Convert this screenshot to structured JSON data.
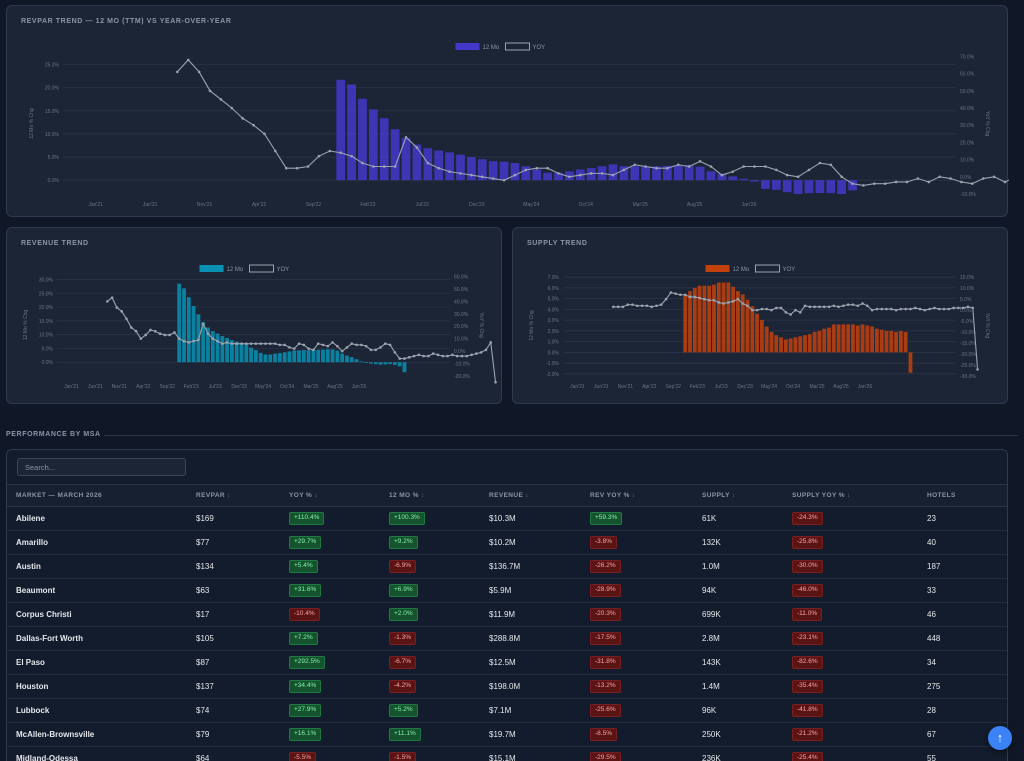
{
  "colors": {
    "blue": "#4338ca",
    "teal": "#0891b2",
    "orange": "#c2410c",
    "yoy": "#9ca3af"
  },
  "revpar": {
    "title": "REVPAR TREND — 12 MO (TTM) VS YEAR-OVER-YEAR",
    "left_axis_label": "12 Mo % Chg",
    "right_axis_label": "YoY % Chg",
    "legend_bar": "12 Mo",
    "legend_line": "YOY"
  },
  "revenue": {
    "title": "REVENUE TREND",
    "left_axis_label": "12 Mo % Chg",
    "right_axis_label": "YoY % Chg",
    "legend_bar": "12 Mo",
    "legend_line": "YOY"
  },
  "supply": {
    "title": "SUPPLY TREND",
    "left_axis_label": "12 Mo % Chg",
    "right_axis_label": "YoY % Chg",
    "legend_bar": "12 Mo",
    "legend_line": "YOY"
  },
  "chart_data": [
    {
      "type": "bar",
      "id": "revpar",
      "title": "REVPAR TREND — 12 MO (TTM) VS YEAR-OVER-YEAR",
      "x_ticks": [
        "Jan'21",
        "Jun'21",
        "Nov'21",
        "Apr'22",
        "Sep'22",
        "Feb'23",
        "Jul'23",
        "Dec'23",
        "May'24",
        "Oct'24",
        "Mar'25",
        "Aug'25",
        "Jan'26"
      ],
      "y_left_ticks": [
        "25.0%",
        "20.0%",
        "15.0%",
        "10.0%",
        "5.0%",
        "0.0%"
      ],
      "y_right_ticks": [
        "70.0%",
        "60.0%",
        "50.0%",
        "40.0%",
        "30.0%",
        "20.0%",
        "10.0%",
        "0.0%",
        "-10.0%"
      ],
      "y_left_range": [
        -3,
        27.5
      ],
      "y_right_range": [
        -10,
        72
      ],
      "series": [
        {
          "name": "12 Mo",
          "start_index": 25,
          "values": [
            21.7,
            20.7,
            17.6,
            15.3,
            13.4,
            11.0,
            9.1,
            7.7,
            6.9,
            6.4,
            6.0,
            5.5,
            5.0,
            4.5,
            4.1,
            4.0,
            3.7,
            3.0,
            2.3,
            1.6,
            1.6,
            1.9,
            2.3,
            2.6,
            3.0,
            3.4,
            3.0,
            3.0,
            3.0,
            3.0,
            3.1,
            3.2,
            3.3,
            2.9,
            1.9,
            1.4,
            0.8,
            0.3,
            -0.3,
            -1.9,
            -2.1,
            -2.6,
            -3.0,
            -2.8,
            -2.8,
            -2.8,
            -3.0,
            -2.2
          ]
        },
        {
          "name": "YOY",
          "type": "line",
          "start_index": 10,
          "values": [
            61.0,
            68.0,
            61.0,
            50.0,
            45.0,
            40.0,
            34.0,
            30.0,
            25.0,
            15.0,
            5.0,
            5.0,
            6.0,
            12.0,
            15.0,
            14.0,
            12.0,
            8.0,
            6.0,
            6.0,
            6.0,
            23.0,
            17.0,
            8.0,
            5.0,
            3.0,
            2.0,
            1.0,
            0.0,
            -1.0,
            -2.0,
            1.0,
            4.0,
            5.0,
            5.0,
            2.0,
            0.0,
            1.0,
            2.0,
            2.0,
            1.0,
            4.0,
            7.0,
            6.0,
            5.0,
            5.0,
            7.0,
            6.0,
            9.0,
            6.0,
            1.0,
            3.0,
            6.0,
            6.0,
            6.0,
            4.0,
            1.0,
            0.0,
            4.0,
            8.0,
            7.0,
            0.0,
            -4.0,
            -5.0,
            -4.0,
            -4.0,
            -3.0,
            -3.0,
            -1.0,
            -3.0,
            0.0,
            -1.0,
            -3.0,
            -4.0,
            -1.0,
            0.0,
            -3.0,
            0.0,
            0.0,
            1.0,
            5.0,
            18.0
          ]
        }
      ]
    },
    {
      "type": "bar",
      "id": "revenue",
      "title": "REVENUE TREND",
      "x_ticks": [
        "Jan'21",
        "Jun'21",
        "Nov'21",
        "Apr'22",
        "Sep'22",
        "Feb'23",
        "Jul'23",
        "Dec'23",
        "May'24",
        "Oct'24",
        "Mar'25",
        "Aug'25",
        "Jan'26"
      ],
      "y_left_ticks": [
        "30.0%",
        "25.0%",
        "20.0%",
        "15.0%",
        "10.0%",
        "5.0%",
        "0.0%"
      ],
      "y_right_ticks": [
        "60.0%",
        "50.0%",
        "40.0%",
        "30.0%",
        "20.0%",
        "10.0%",
        "0.0%",
        "-10.0%",
        "-20.0%"
      ],
      "y_left_range": [
        -5,
        32
      ],
      "y_right_range": [
        -20,
        62
      ],
      "series": [
        {
          "name": "12 Mo",
          "start_index": 25,
          "values": [
            28.5,
            26.8,
            23.6,
            20.4,
            17.4,
            14.5,
            12.6,
            11.3,
            10.4,
            9.5,
            8.8,
            8.0,
            7.5,
            7.1,
            6.5,
            5.3,
            4.4,
            3.4,
            2.8,
            2.8,
            3.1,
            3.3,
            3.6,
            3.9,
            4.3,
            4.3,
            4.4,
            4.4,
            4.4,
            4.5,
            4.6,
            4.7,
            4.7,
            4.2,
            3.1,
            2.4,
            1.8,
            1.1,
            0.3,
            -0.3,
            -0.5,
            -0.7,
            -0.9,
            -0.8,
            -0.7,
            -1.0,
            -1.5,
            -3.6
          ]
        },
        {
          "name": "YOY",
          "type": "line",
          "start_index": 10,
          "values": [
            40.0,
            43.0,
            35.0,
            32.0,
            26.0,
            19.0,
            16.0,
            10.0,
            13.0,
            17.0,
            16.0,
            14.0,
            13.0,
            13.0,
            15.0,
            10.0,
            8.0,
            7.0,
            8.0,
            9.0,
            22.0,
            14.0,
            10.0,
            8.0,
            6.0,
            7.0,
            6.0,
            6.0,
            6.0,
            6.0,
            6.0,
            6.0,
            6.0,
            6.0,
            6.0,
            6.0,
            5.0,
            5.0,
            3.0,
            2.0,
            6.0,
            5.0,
            2.0,
            1.0,
            6.0,
            5.0,
            4.0,
            7.0,
            4.0,
            0.0,
            3.0,
            6.0,
            5.0,
            5.0,
            4.0,
            1.0,
            1.0,
            3.0,
            6.0,
            5.0,
            -1.0,
            -6.0,
            -6.0,
            -5.0,
            -4.0,
            -3.0,
            -4.0,
            -4.0,
            -2.0,
            -3.0,
            -4.0,
            -4.0,
            -3.0,
            -4.0,
            -4.0,
            -4.0,
            -3.0,
            -2.0,
            -1.0,
            1.0,
            7.0,
            -25.0
          ]
        }
      ]
    },
    {
      "type": "bar",
      "id": "supply",
      "title": "SUPPLY TREND",
      "x_ticks": [
        "Jan'21",
        "Jun'21",
        "Nov'21",
        "Apr'22",
        "Sep'22",
        "Feb'23",
        "Jul'23",
        "Dec'23",
        "May'24",
        "Oct'24",
        "Mar'25",
        "Aug'25",
        "Jan'26"
      ],
      "y_left_ticks": [
        "7.0%",
        "6.0%",
        "5.0%",
        "4.0%",
        "3.0%",
        "2.0%",
        "1.0%",
        "0.0%",
        "-1.0%",
        "-2.0%"
      ],
      "y_right_ticks": [
        "15.0%",
        "10.0%",
        "5.0%",
        "0.0%",
        "-5.0%",
        "-10.0%",
        "-15.0%",
        "-20.0%",
        "-25.0%",
        "-30.0%"
      ],
      "y_left_range": [
        -2.2,
        7.2
      ],
      "y_right_range": [
        -30,
        16
      ],
      "series": [
        {
          "name": "12 Mo",
          "start_index": 25,
          "values": [
            5.3,
            5.7,
            6.0,
            6.2,
            6.2,
            6.2,
            6.3,
            6.5,
            6.5,
            6.5,
            6.1,
            5.7,
            5.4,
            4.9,
            4.3,
            3.6,
            3.0,
            2.4,
            1.9,
            1.6,
            1.4,
            1.2,
            1.3,
            1.4,
            1.5,
            1.6,
            1.7,
            1.9,
            2.0,
            2.2,
            2.3,
            2.6,
            2.6,
            2.6,
            2.6,
            2.6,
            2.5,
            2.6,
            2.5,
            2.4,
            2.2,
            2.1,
            2.0,
            2.0,
            1.9,
            2.0,
            1.9,
            -1.9
          ]
        },
        {
          "name": "YOY",
          "type": "line",
          "start_index": 10,
          "values": [
            1.5,
            1.5,
            1.5,
            2.5,
            2.5,
            2.0,
            2.0,
            2.0,
            1.5,
            2.0,
            2.5,
            5.0,
            8.0,
            7.5,
            7.0,
            7.0,
            6.0,
            6.0,
            5.5,
            5.0,
            4.5,
            4.5,
            3.5,
            3.0,
            3.5,
            4.0,
            5.0,
            3.0,
            2.0,
            0.0,
            0.0,
            0.5,
            0.5,
            0.0,
            1.0,
            1.0,
            -1.0,
            -2.0,
            0.0,
            -1.0,
            2.0,
            1.5,
            1.5,
            1.5,
            1.5,
            1.5,
            2.0,
            1.5,
            2.0,
            2.5,
            2.5,
            2.0,
            3.0,
            2.0,
            0.0,
            0.5,
            0.5,
            0.5,
            0.5,
            0.0,
            0.5,
            0.5,
            0.5,
            1.0,
            0.5,
            0.0,
            0.5,
            1.0,
            0.5,
            0.5,
            0.5,
            1.0,
            1.0,
            1.0,
            1.5,
            1.0,
            -27.0
          ]
        }
      ]
    }
  ],
  "table": {
    "section_title": "PERFORMANCE BY MSA",
    "search_placeholder": "Search...",
    "headers": [
      "MARKET — MARCH 2026",
      "REVPAR",
      "YOY %",
      "12 MO %",
      "REVENUE",
      "REV YOY %",
      "SUPPLY",
      "SUPPLY YOY %",
      "HOTELS"
    ],
    "sortable": [
      false,
      true,
      true,
      true,
      true,
      true,
      true,
      true,
      false
    ],
    "rows": [
      [
        "Abilene",
        "$169",
        "+110.4%",
        "+100.3%",
        "$10.3M",
        "+59.3%",
        "61K",
        "-24.3%",
        "23"
      ],
      [
        "Amarillo",
        "$77",
        "+29.7%",
        "+9.2%",
        "$10.2M",
        "-3.8%",
        "132K",
        "-25.8%",
        "40"
      ],
      [
        "Austin",
        "$134",
        "+5.4%",
        "-6.9%",
        "$136.7M",
        "-26.2%",
        "1.0M",
        "-30.0%",
        "187"
      ],
      [
        "Beaumont",
        "$63",
        "+31.6%",
        "+6.9%",
        "$5.9M",
        "-28.9%",
        "94K",
        "-46.0%",
        "33"
      ],
      [
        "Corpus Christi",
        "$17",
        "-10.4%",
        "+2.0%",
        "$11.9M",
        "-20.3%",
        "699K",
        "-11.0%",
        "46"
      ],
      [
        "Dallas-Fort Worth",
        "$105",
        "+7.2%",
        "-1.3%",
        "$288.8M",
        "-17.5%",
        "2.8M",
        "-23.1%",
        "448"
      ],
      [
        "El Paso",
        "$87",
        "+292.5%",
        "-6.7%",
        "$12.5M",
        "-31.8%",
        "143K",
        "-82.6%",
        "34"
      ],
      [
        "Houston",
        "$137",
        "+34.4%",
        "-4.2%",
        "$198.0M",
        "-13.2%",
        "1.4M",
        "-35.4%",
        "275"
      ],
      [
        "Lubbock",
        "$74",
        "+27.9%",
        "+5.2%",
        "$7.1M",
        "-25.6%",
        "96K",
        "-41.8%",
        "28"
      ],
      [
        "McAllen-Brownsville",
        "$79",
        "+16.1%",
        "+11.1%",
        "$19.7M",
        "-8.5%",
        "250K",
        "-21.2%",
        "67"
      ],
      [
        "Midland-Odessa",
        "$64",
        "-5.5%",
        "-1.5%",
        "$15.1M",
        "-29.5%",
        "236K",
        "-25.4%",
        "55"
      ]
    ]
  },
  "scroll_top_icon": "arrow-up-icon",
  "scroll_top_glyph": "↑"
}
